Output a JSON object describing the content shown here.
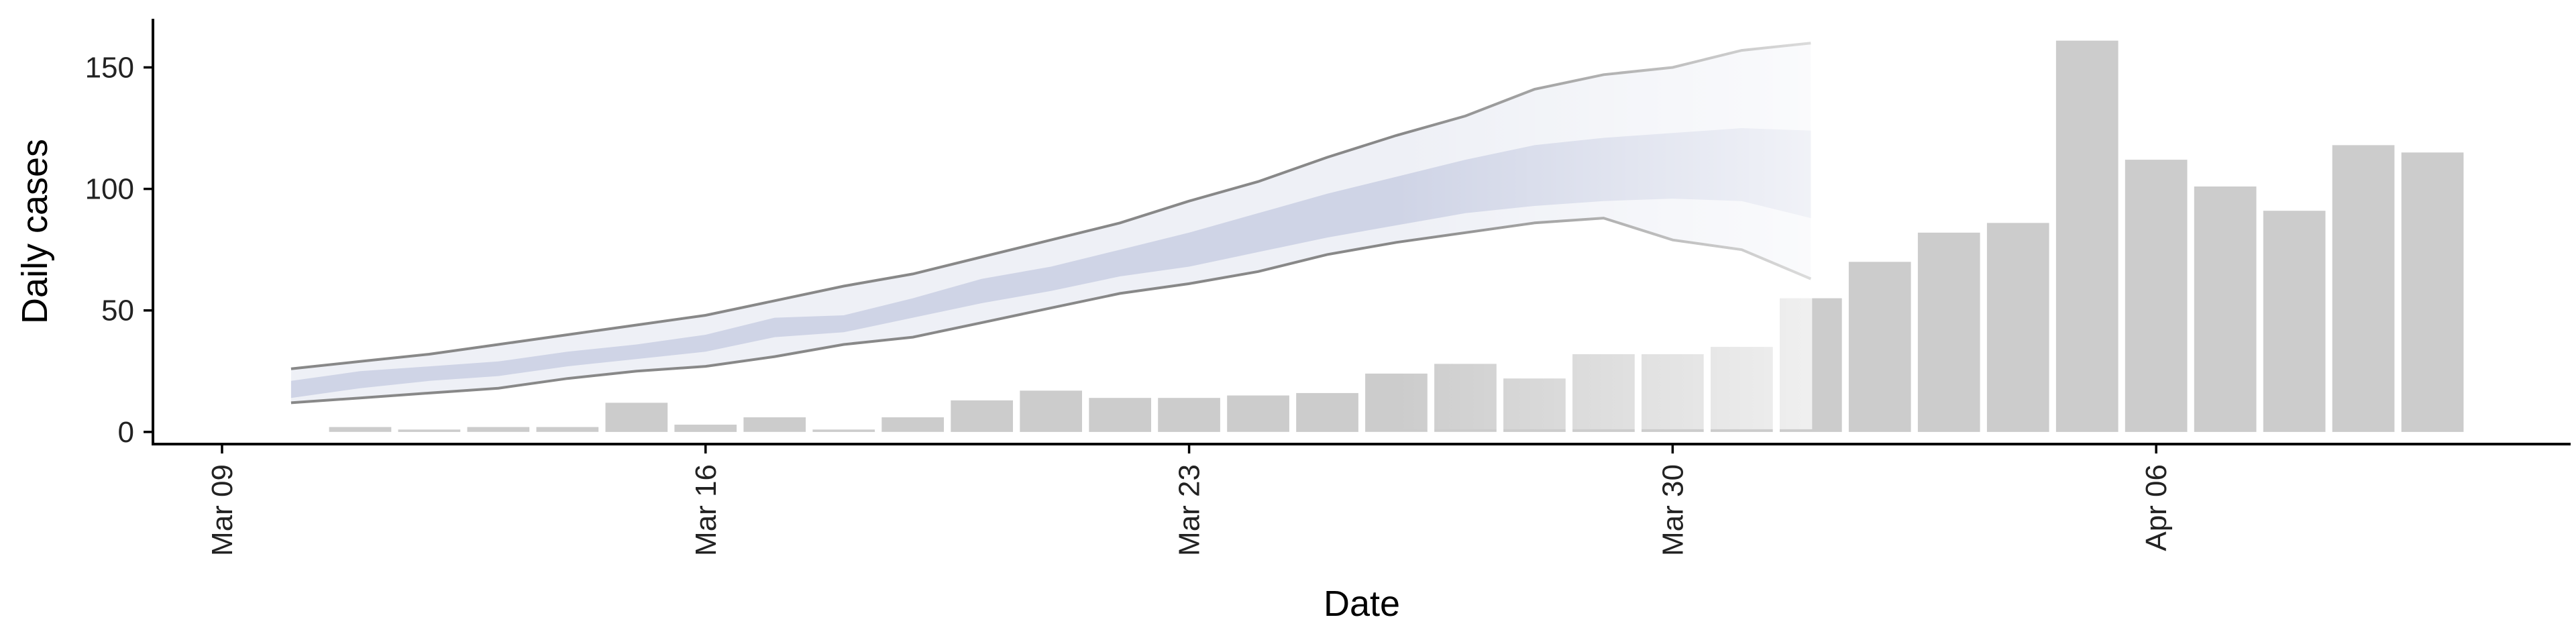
{
  "chart_data": {
    "type": "bar",
    "title": "",
    "xlabel": "Date",
    "ylabel": "Daily cases",
    "x_axis": {
      "type": "date",
      "range": [
        "2020-03-08",
        "2020-04-12"
      ],
      "ticks": [
        {
          "date": "2020-03-09",
          "label": "Mar 09"
        },
        {
          "date": "2020-03-16",
          "label": "Mar 16"
        },
        {
          "date": "2020-03-23",
          "label": "Mar 23"
        },
        {
          "date": "2020-03-30",
          "label": "Mar 30"
        },
        {
          "date": "2020-04-06",
          "label": "Apr 06"
        }
      ]
    },
    "y_axis": {
      "range": [
        -5,
        170
      ],
      "ticks": [
        0,
        50,
        100,
        150
      ]
    },
    "grid": false,
    "legend": "none",
    "bar_color": "#cccccc",
    "bars": [
      {
        "date": "2020-03-11",
        "value": 2
      },
      {
        "date": "2020-03-12",
        "value": 1
      },
      {
        "date": "2020-03-13",
        "value": 2
      },
      {
        "date": "2020-03-14",
        "value": 2
      },
      {
        "date": "2020-03-15",
        "value": 12
      },
      {
        "date": "2020-03-16",
        "value": 3
      },
      {
        "date": "2020-03-17",
        "value": 6
      },
      {
        "date": "2020-03-18",
        "value": 1
      },
      {
        "date": "2020-03-19",
        "value": 6
      },
      {
        "date": "2020-03-20",
        "value": 13
      },
      {
        "date": "2020-03-21",
        "value": 17
      },
      {
        "date": "2020-03-22",
        "value": 14
      },
      {
        "date": "2020-03-23",
        "value": 14
      },
      {
        "date": "2020-03-24",
        "value": 15
      },
      {
        "date": "2020-03-25",
        "value": 16
      },
      {
        "date": "2020-03-26",
        "value": 24
      },
      {
        "date": "2020-03-27",
        "value": 28
      },
      {
        "date": "2020-03-28",
        "value": 22
      },
      {
        "date": "2020-03-29",
        "value": 32
      },
      {
        "date": "2020-03-30",
        "value": 32
      },
      {
        "date": "2020-03-31",
        "value": 35
      },
      {
        "date": "2020-04-01",
        "value": 55
      },
      {
        "date": "2020-04-02",
        "value": 70
      },
      {
        "date": "2020-04-03",
        "value": 82
      },
      {
        "date": "2020-04-04",
        "value": 86
      },
      {
        "date": "2020-04-05",
        "value": 161
      },
      {
        "date": "2020-04-06",
        "value": 112
      },
      {
        "date": "2020-04-07",
        "value": 101
      },
      {
        "date": "2020-04-08",
        "value": 91
      },
      {
        "date": "2020-04-09",
        "value": 118
      },
      {
        "date": "2020-04-10",
        "value": 115
      }
    ],
    "bands": {
      "dates": [
        "2020-03-10",
        "2020-03-11",
        "2020-03-12",
        "2020-03-13",
        "2020-03-14",
        "2020-03-15",
        "2020-03-16",
        "2020-03-17",
        "2020-03-18",
        "2020-03-19",
        "2020-03-20",
        "2020-03-21",
        "2020-03-22",
        "2020-03-23",
        "2020-03-24",
        "2020-03-25",
        "2020-03-26",
        "2020-03-27",
        "2020-03-28",
        "2020-03-29",
        "2020-03-30",
        "2020-03-31",
        "2020-04-01"
      ],
      "outer_lower": [
        12,
        14,
        16,
        18,
        22,
        25,
        27,
        31,
        36,
        39,
        45,
        51,
        57,
        61,
        66,
        73,
        78,
        82,
        86,
        88,
        79,
        75,
        63
      ],
      "outer_upper": [
        26,
        29,
        32,
        36,
        40,
        44,
        48,
        54,
        60,
        65,
        72,
        79,
        86,
        95,
        103,
        113,
        122,
        130,
        141,
        147,
        150,
        157,
        160
      ],
      "inner_lower": [
        14,
        18,
        21,
        23,
        27,
        30,
        33,
        39,
        41,
        47,
        53,
        58,
        64,
        68,
        74,
        80,
        85,
        90,
        93,
        95,
        96,
        95,
        88
      ],
      "inner_upper": [
        21,
        25,
        27,
        29,
        33,
        36,
        40,
        47,
        48,
        55,
        63,
        68,
        75,
        82,
        90,
        98,
        105,
        112,
        118,
        121,
        123,
        125,
        124
      ],
      "outer_fill": "#eef0f6",
      "inner_fill": "#cfd4e6",
      "outline_color": "#888888"
    }
  }
}
